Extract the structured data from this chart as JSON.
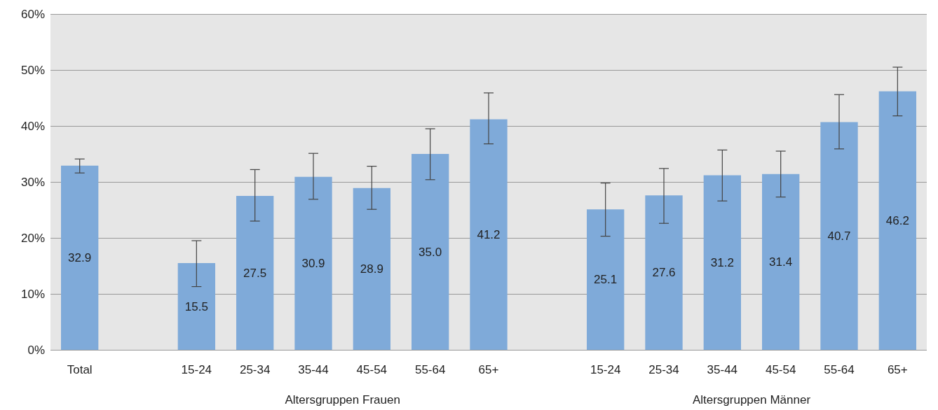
{
  "chart_data": {
    "type": "bar",
    "categories": [
      "Total",
      null,
      "15-24",
      "25-34",
      "35-44",
      "45-54",
      "55-64",
      "65+",
      null,
      "15-24",
      "25-34",
      "35-44",
      "45-54",
      "55-64",
      "65+"
    ],
    "values": [
      32.9,
      null,
      15.5,
      27.5,
      30.9,
      28.9,
      35.0,
      41.2,
      null,
      25.1,
      27.6,
      31.2,
      31.4,
      40.7,
      46.2
    ],
    "value_labels": [
      "32.9",
      null,
      "15.5",
      "27.5",
      "30.9",
      "28.9",
      "35.0",
      "41.2",
      null,
      "25.1",
      "27.6",
      "31.2",
      "31.4",
      "40.7",
      "46.2"
    ],
    "errors": [
      [
        31.6,
        34.1
      ],
      null,
      [
        11.3,
        19.5
      ],
      [
        23.0,
        32.2
      ],
      [
        26.9,
        35.1
      ],
      [
        25.1,
        32.8
      ],
      [
        30.4,
        39.5
      ],
      [
        36.8,
        45.9
      ],
      null,
      [
        20.3,
        29.8
      ],
      [
        22.6,
        32.4
      ],
      [
        26.6,
        35.7
      ],
      [
        27.3,
        35.5
      ],
      [
        35.9,
        45.6
      ],
      [
        41.8,
        50.5
      ]
    ],
    "color": "#7faad9",
    "ylim": [
      0,
      60
    ],
    "yticks": [
      {
        "value": 0,
        "label": "0%"
      },
      {
        "value": 10,
        "label": "10%"
      },
      {
        "value": 20,
        "label": "20%"
      },
      {
        "value": 30,
        "label": "30%"
      },
      {
        "value": 40,
        "label": "40%"
      },
      {
        "value": 50,
        "label": "50%"
      },
      {
        "value": 60,
        "label": "60%"
      }
    ],
    "grid": "y",
    "annotations": [
      "Altersgruppen Frauen",
      "Altersgruppen Männer"
    ]
  }
}
